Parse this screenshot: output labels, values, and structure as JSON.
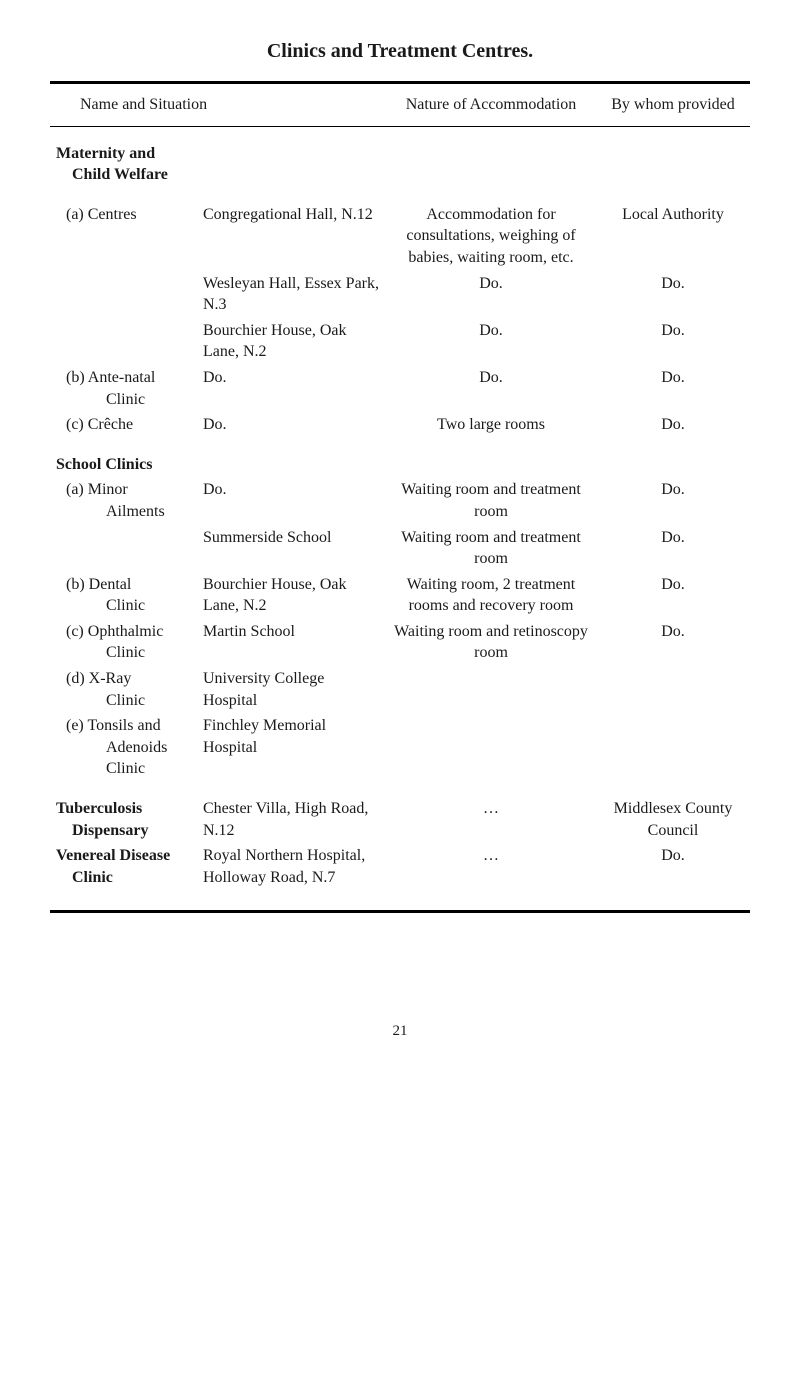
{
  "title": "Clinics and Treatment Centres.",
  "header": {
    "col1": "Name and Situation",
    "col2": "Nature of Accommodation",
    "col3": "By whom provided"
  },
  "sections": {
    "maternity": {
      "heading_l1": "Maternity and",
      "heading_l2": "Child Welfare",
      "rows": {
        "a": {
          "label_a": "(a) Centres",
          "sit1": "Congregational Hall, N.12",
          "nat1": "Accommodation for consultations, weighing of babies, waiting room, etc.",
          "who1": "Local Authority",
          "sit2": "Wesleyan Hall, Essex Park, N.3",
          "nat2": "Do.",
          "who2": "Do.",
          "sit3": "Bourchier House, Oak Lane, N.2",
          "nat3": "Do.",
          "who3": "Do."
        },
        "b": {
          "label": "(b) Ante-natal",
          "label2": "Clinic",
          "sit": "Do.",
          "nat": "Do.",
          "who": "Do."
        },
        "c": {
          "label": "(c) Crêche",
          "sit": "Do.",
          "nat": "Two large rooms",
          "who": "Do."
        }
      }
    },
    "school": {
      "heading": "School Clinics",
      "rows": {
        "a": {
          "label": "(a) Minor",
          "label2": "Ailments",
          "sit1": "Do.",
          "nat1": "Waiting room and treatment room",
          "who1": "Do.",
          "sit2": "Summerside School",
          "nat2": "Waiting room and treatment room",
          "who2": "Do."
        },
        "b": {
          "label": "(b) Dental",
          "label2": "Clinic",
          "sit": "Bourchier House, Oak Lane, N.2",
          "nat": "Waiting room, 2 treatment rooms and recovery room",
          "who": "Do."
        },
        "c": {
          "label": "(c) Ophthalmic",
          "label2": "Clinic",
          "sit": "Martin School",
          "nat": "Waiting room and retinoscopy room",
          "who": "Do."
        },
        "d": {
          "label": "(d) X-Ray",
          "label2": "Clinic",
          "sit": "University College Hospital",
          "nat": "",
          "who": ""
        },
        "e": {
          "label": "(e) Tonsils and",
          "label2": "Adenoids",
          "label3": "Clinic",
          "sit": "Finchley Memorial Hospital",
          "nat": "",
          "who": ""
        }
      }
    },
    "tb": {
      "label1": "Tuberculosis",
      "label2": "Dispensary",
      "sit": "Chester Villa, High Road, N.12",
      "nat": "…",
      "who": "Middlesex County Council"
    },
    "vd": {
      "label1": "Venereal Disease",
      "label2": "Clinic",
      "sit": "Royal Northern Hospital, Holloway Road, N.7",
      "nat": "…",
      "who": "Do."
    }
  },
  "page_number": "21"
}
